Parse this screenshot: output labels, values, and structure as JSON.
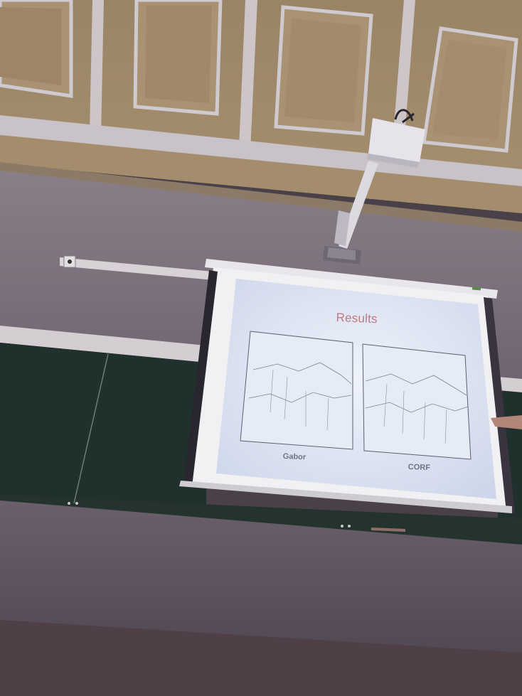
{
  "slide": {
    "title": "Results",
    "panels": [
      {
        "caption": "Gabor"
      },
      {
        "caption": "CORF"
      }
    ]
  },
  "colors": {
    "ceiling": "#8c7a66",
    "wall": "#7a6f78",
    "chalkboard": "#1f302d",
    "screen": "#dfe6f4",
    "slide_title": "#c0787e"
  }
}
